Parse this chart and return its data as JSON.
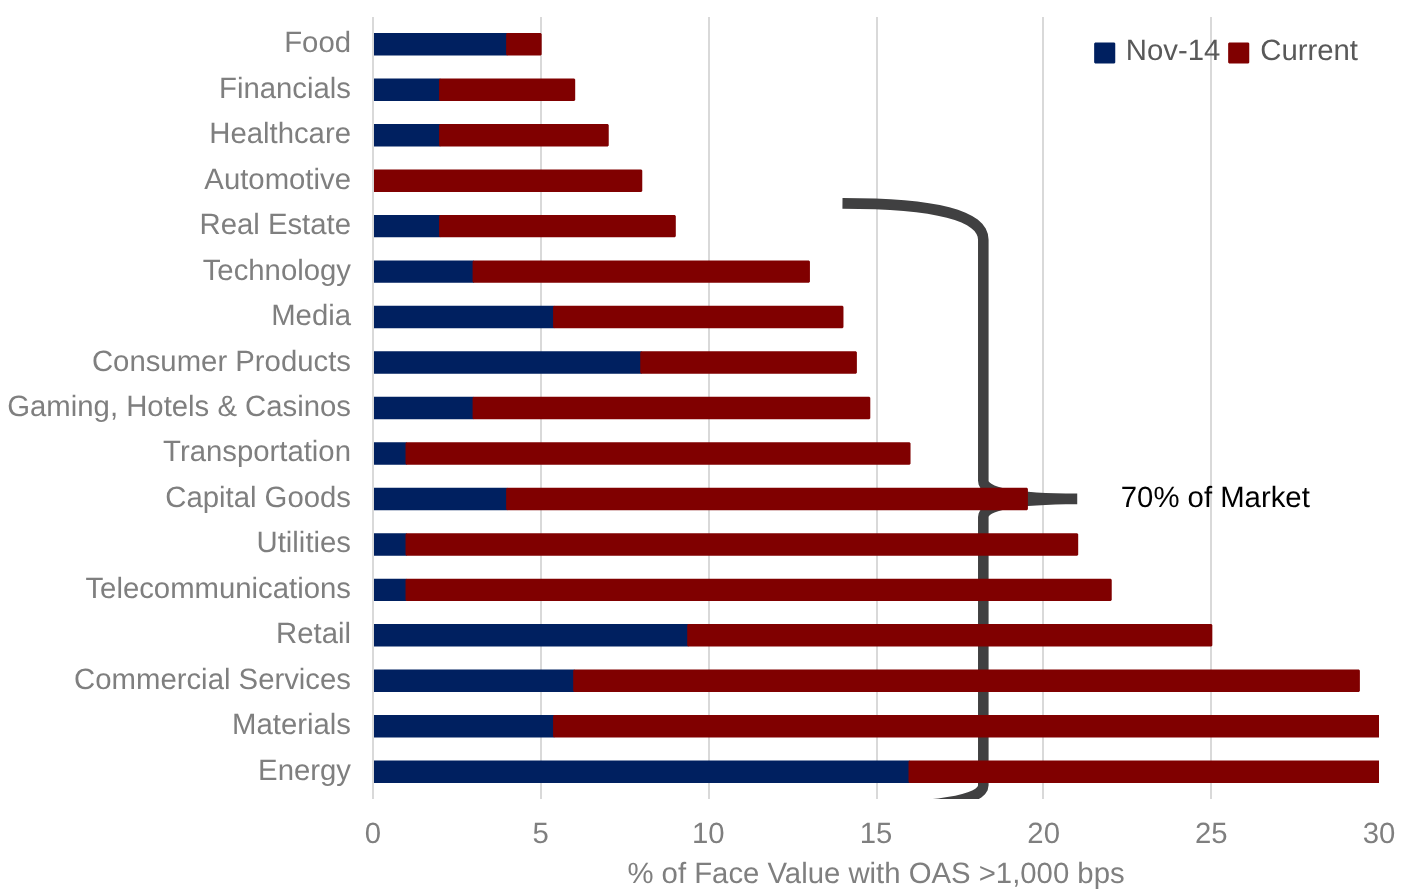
{
  "chart_data": {
    "type": "bar",
    "orientation": "horizontal",
    "stacked": true,
    "categories": [
      "Food",
      "Financials",
      "Healthcare",
      "Automotive",
      "Real Estate",
      "Technology",
      "Media",
      "Consumer Products",
      "Gaming, Hotels & Casinos",
      "Transportation",
      "Capital Goods",
      "Utilities",
      "Telecommunications",
      "Retail",
      "Commercial Services",
      "Materials",
      "Energy"
    ],
    "series": [
      {
        "name": "Nov-14",
        "color": "#002060",
        "values": [
          4,
          2,
          2,
          0,
          2,
          3,
          5.4,
          8,
          3,
          1,
          4,
          1,
          1,
          9.4,
          6,
          5.4,
          16
        ]
      },
      {
        "name": "Current",
        "color": "#800000",
        "values": [
          1,
          4,
          5,
          8,
          7,
          10,
          8.6,
          6.4,
          11.8,
          15,
          15.5,
          20,
          21,
          15.6,
          23.4,
          24.6,
          14
        ]
      }
    ],
    "xlabel": "% of Face Value with OAS >1,000 bps",
    "xlim": [
      0,
      30
    ],
    "xticks": [
      0,
      5,
      10,
      15,
      20,
      25,
      30
    ],
    "grid": "x",
    "legend": "top right",
    "annotations": [
      "70% of Market"
    ]
  }
}
